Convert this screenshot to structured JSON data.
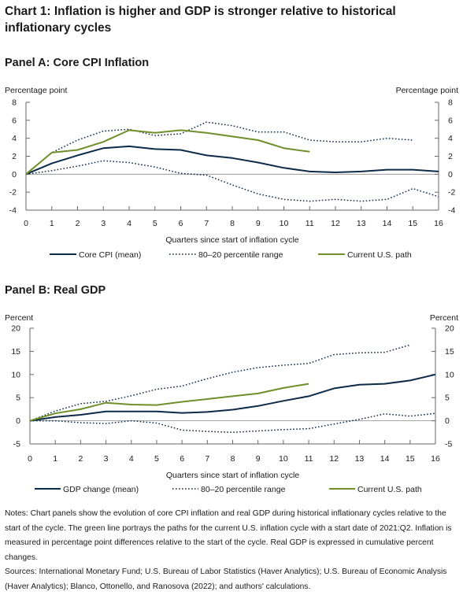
{
  "title": "Chart 1: Inflation is higher and GDP is stronger relative to historical inflationary cycles",
  "colors": {
    "mean": "#0d2a48",
    "range": "#0d2a48",
    "current": "#6f8f2a",
    "axis": "#666666"
  },
  "chart_data": [
    {
      "type": "line",
      "title": "Panel A: Core CPI Inflation",
      "xlabel": "Quarters since start of inflation cycle",
      "ylabel_left": "Percentage point",
      "ylabel_right": "Percentage point",
      "xlim": [
        0,
        16
      ],
      "ylim": [
        -4,
        8
      ],
      "xticks": [
        0,
        1,
        2,
        3,
        4,
        5,
        6,
        7,
        8,
        9,
        10,
        11,
        12,
        13,
        14,
        15,
        16
      ],
      "yticks": [
        -4,
        -2,
        0,
        2,
        4,
        6,
        8
      ],
      "grid": false,
      "legend_position": "bottom",
      "series": [
        {
          "name": "Core CPI (mean)",
          "style": "solid",
          "color": "#0d2a48",
          "x": [
            0,
            1,
            2,
            3,
            4,
            5,
            6,
            7,
            8,
            9,
            10,
            11,
            12,
            13,
            14,
            15,
            16
          ],
          "y": [
            0,
            1.2,
            2.1,
            2.9,
            3.1,
            2.8,
            2.7,
            2.1,
            1.8,
            1.3,
            0.7,
            0.3,
            0.2,
            0.3,
            0.5,
            0.5,
            0.3
          ]
        },
        {
          "name": "80–20 percentile range",
          "style": "dotted",
          "color": "#0d2a48",
          "x": [
            0,
            1,
            2,
            3,
            4,
            5,
            6,
            7,
            8,
            9,
            10,
            11,
            12,
            13,
            14,
            15
          ],
          "y": [
            0,
            2.4,
            3.8,
            4.8,
            5.0,
            4.3,
            4.5,
            5.8,
            5.4,
            4.7,
            4.7,
            3.8,
            3.6,
            3.6,
            4.0,
            3.8
          ]
        },
        {
          "name": "",
          "style": "dotted",
          "color": "#0d2a48",
          "x": [
            0,
            1,
            2,
            3,
            4,
            5,
            6,
            7,
            8,
            9,
            10,
            11,
            12,
            13,
            14,
            15,
            16
          ],
          "y": [
            0,
            0.4,
            0.9,
            1.5,
            1.3,
            0.8,
            0.1,
            -0.1,
            -1.2,
            -2.2,
            -2.8,
            -3.0,
            -2.8,
            -3.0,
            -2.8,
            -1.6,
            -2.5
          ]
        },
        {
          "name": "Current U.S. path",
          "style": "solid",
          "color": "#6f8f2a",
          "x": [
            0,
            1,
            2,
            3,
            4,
            5,
            6,
            7,
            8,
            9,
            10,
            11
          ],
          "y": [
            0,
            2.4,
            2.7,
            3.6,
            4.9,
            4.6,
            4.9,
            4.6,
            4.2,
            3.8,
            2.9,
            2.5
          ]
        }
      ]
    },
    {
      "type": "line",
      "title": "Panel B: Real GDP",
      "xlabel": "Quarters since start of inflation cycle",
      "ylabel_left": "Percent",
      "ylabel_right": "Percent",
      "xlim": [
        0,
        16
      ],
      "ylim": [
        -5,
        20
      ],
      "xticks": [
        0,
        1,
        2,
        3,
        4,
        5,
        6,
        7,
        8,
        9,
        10,
        11,
        12,
        13,
        14,
        15,
        16
      ],
      "yticks": [
        -5,
        0,
        5,
        10,
        15,
        20
      ],
      "grid": false,
      "legend_position": "bottom",
      "series": [
        {
          "name": "GDP change (mean)",
          "style": "solid",
          "color": "#0d2a48",
          "x": [
            0,
            1,
            2,
            3,
            4,
            5,
            6,
            7,
            8,
            9,
            10,
            11,
            12,
            13,
            14,
            15,
            16
          ],
          "y": [
            0,
            0.8,
            1.3,
            2.0,
            2.0,
            2.0,
            1.7,
            1.9,
            2.4,
            3.2,
            4.3,
            5.3,
            7.0,
            7.8,
            8.0,
            8.7,
            10.0
          ]
        },
        {
          "name": "80–20 percentile range",
          "style": "dotted",
          "color": "#0d2a48",
          "x": [
            0,
            1,
            2,
            3,
            4,
            5,
            6,
            7,
            8,
            9,
            10,
            11,
            12,
            13,
            14,
            15
          ],
          "y": [
            0,
            2.1,
            3.7,
            4.2,
            5.4,
            6.8,
            7.5,
            9.1,
            10.5,
            11.5,
            12.0,
            12.4,
            14.3,
            14.7,
            14.8,
            16.4
          ]
        },
        {
          "name": "",
          "style": "dotted",
          "color": "#0d2a48",
          "x": [
            0,
            1,
            2,
            3,
            4,
            5,
            6,
            7,
            8,
            9,
            10,
            11,
            12,
            13,
            14,
            15,
            16
          ],
          "y": [
            0,
            0,
            -0.4,
            -0.6,
            0,
            -0.5,
            -2.0,
            -2.3,
            -2.5,
            -2.2,
            -1.9,
            -1.7,
            -0.7,
            0.3,
            1.5,
            1.0,
            1.6
          ]
        },
        {
          "name": "Current U.S. path",
          "style": "solid",
          "color": "#6f8f2a",
          "x": [
            0,
            1,
            2,
            3,
            4,
            5,
            6,
            7,
            8,
            9,
            10,
            11
          ],
          "y": [
            0,
            1.6,
            2.5,
            3.9,
            3.5,
            3.4,
            4.1,
            4.7,
            5.3,
            5.9,
            7.1,
            8.0
          ]
        }
      ]
    }
  ],
  "notes": "Notes: Chart panels show the evolution of core CPI inflation and real GDP during historical inflationary cycles relative to the start of the cycle. The green line portrays the paths for the current U.S. inflation cycle with a start date of 2021:Q2. Inflation is measured in percentage point differences relative to the start of the cycle. Real GDP is expressed in cumulative percent changes.",
  "sources": "Sources: International Monetary Fund; U.S. Bureau of Labor Statistics (Haver Analytics); U.S. Bureau of Economic Analysis (Haver Analytics); Blanco, Ottonello, and Ranosova (2022); and authors' calculations."
}
